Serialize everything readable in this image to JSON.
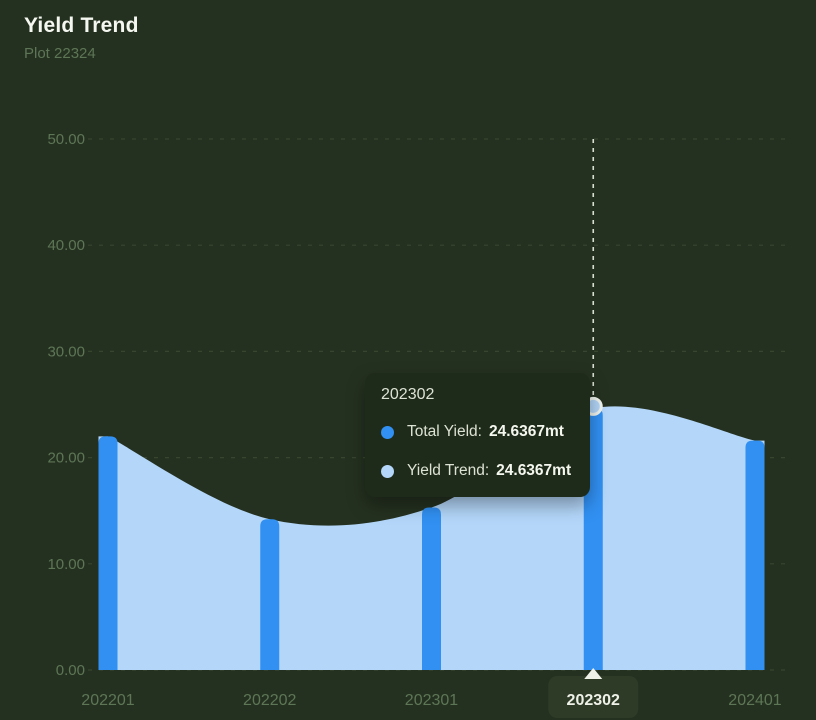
{
  "header": {
    "title": "Yield Trend",
    "subtitle": "Plot 22324"
  },
  "chart_data": {
    "type": "area",
    "title": "Yield Trend",
    "categories": [
      "202201",
      "202202",
      "202301",
      "202302",
      "202401"
    ],
    "series": [
      {
        "name": "Total Yield",
        "type": "bar",
        "color": "#3190f2",
        "values": [
          22.0,
          14.2,
          15.3,
          24.6367,
          21.6
        ]
      },
      {
        "name": "Yield Trend",
        "type": "area",
        "color": "#b3d6f9",
        "values": [
          22.0,
          14.2,
          15.3,
          24.6367,
          21.6
        ]
      }
    ],
    "unit": "mt",
    "ylim": [
      0,
      50
    ],
    "ytick_labels": [
      "0.00",
      "10.00",
      "20.00",
      "30.00",
      "40.00",
      "50.00"
    ],
    "grid": "dashed-horizontal",
    "legend": "none",
    "highlighted_category": "202302"
  },
  "tooltip": {
    "title": "202302",
    "rows": [
      {
        "series": "Total Yield",
        "label": "Total Yield:",
        "value": "24.6367mt"
      },
      {
        "series": "Yield Trend",
        "label": "Yield Trend:",
        "value": "24.6367mt"
      }
    ]
  },
  "colors": {
    "background": "#253120",
    "bar": "#3190f2",
    "area": "#b3d6f9",
    "grid": "#38452f",
    "axis_label": "#5d7656",
    "title_text": "#f5f7f1",
    "subtitle_text": "#5d7656",
    "tooltip_bg": "#1f2b1a",
    "tooltip_text": "#dde3d4",
    "tooltip_value": "#f4f7ee",
    "highlight_pill": "#2e3b27",
    "highlight_text": "#eef1e7",
    "crosshair": "#d9dfd3",
    "marker_ring": "#f0f4ee"
  }
}
